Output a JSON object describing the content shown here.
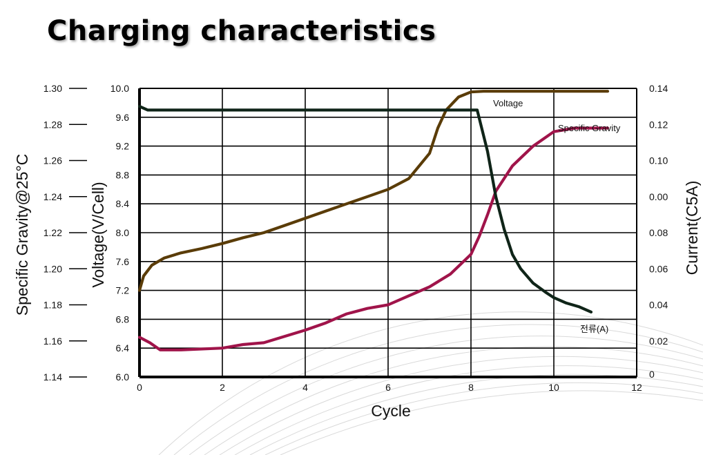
{
  "page": {
    "title": "Charging characteristics"
  },
  "chart_data": {
    "type": "line",
    "xlabel": "Cycle",
    "ylabel_left_outer": "Specific Gravity@25°C",
    "ylabel_left_inner": "Voltage(V/Cell)",
    "ylabel_right": "Current(C5A)",
    "x_ticks": [
      "0",
      "2",
      "4",
      "6",
      "8",
      "10",
      "12"
    ],
    "xlim": [
      0,
      12
    ],
    "voltage_ticks": [
      "6.0",
      "6.4",
      "6.8",
      "7.2",
      "7.6",
      "8.0",
      "8.4",
      "8.8",
      "9.2",
      "9.6",
      "10.0"
    ],
    "voltage_lim": [
      6.0,
      10.0
    ],
    "gravity_ticks": [
      "1.14",
      "1.16",
      "1.18",
      "1.20",
      "1.22",
      "1.24",
      "1.26",
      "1.28",
      "1.30"
    ],
    "gravity_lim": [
      1.14,
      1.3
    ],
    "current_ticks": [
      "0",
      "0.02",
      "0.04",
      "0.06",
      "0.08",
      "0.00",
      "0.10",
      "0.12",
      "0.14"
    ],
    "current_lim": [
      0,
      0.16
    ],
    "grid": true,
    "colors": {
      "voltage": "#5a3c08",
      "specific_gravity": "#a0144a",
      "current": "#0f2418",
      "grid": "#000000"
    },
    "series": [
      {
        "name": "Voltage",
        "axis": "voltage",
        "x": [
          0,
          0.1,
          0.3,
          0.6,
          1.0,
          1.5,
          2.0,
          2.5,
          3.0,
          3.5,
          4.0,
          4.5,
          5.0,
          5.5,
          6.0,
          6.5,
          7.0,
          7.2,
          7.4,
          7.7,
          8.0,
          8.3,
          9.0,
          10.0,
          11.0,
          11.3
        ],
        "y": [
          7.2,
          7.4,
          7.55,
          7.65,
          7.72,
          7.78,
          7.85,
          7.93,
          8.0,
          8.1,
          8.2,
          8.3,
          8.4,
          8.5,
          8.6,
          8.75,
          9.1,
          9.45,
          9.7,
          9.88,
          9.95,
          9.96,
          9.96,
          9.96,
          9.96,
          9.96
        ]
      },
      {
        "name": "Specific Gravity",
        "axis": "gravity",
        "x": [
          0,
          0.25,
          0.5,
          1.0,
          2.0,
          2.5,
          3.0,
          4.0,
          4.5,
          5.0,
          5.5,
          6.0,
          6.5,
          7.0,
          7.5,
          8.0,
          8.2,
          8.4,
          8.6,
          9.0,
          9.5,
          10.0,
          10.5,
          11.3
        ],
        "y": [
          1.162,
          1.159,
          1.155,
          1.155,
          1.156,
          1.158,
          1.159,
          1.166,
          1.17,
          1.175,
          1.178,
          1.18,
          1.185,
          1.19,
          1.197,
          1.208,
          1.218,
          1.23,
          1.243,
          1.257,
          1.268,
          1.276,
          1.278,
          1.278
        ]
      },
      {
        "name": "전류(A)",
        "axis": "current",
        "x": [
          0,
          0.2,
          1.0,
          3.0,
          6.0,
          8.0,
          8.15,
          8.4,
          8.6,
          8.8,
          9.0,
          9.2,
          9.5,
          9.8,
          10.0,
          10.3,
          10.6,
          10.9
        ],
        "y": [
          0.15,
          0.148,
          0.148,
          0.148,
          0.148,
          0.148,
          0.148,
          0.125,
          0.1,
          0.082,
          0.068,
          0.06,
          0.052,
          0.047,
          0.044,
          0.041,
          0.039,
          0.036
        ]
      }
    ]
  }
}
